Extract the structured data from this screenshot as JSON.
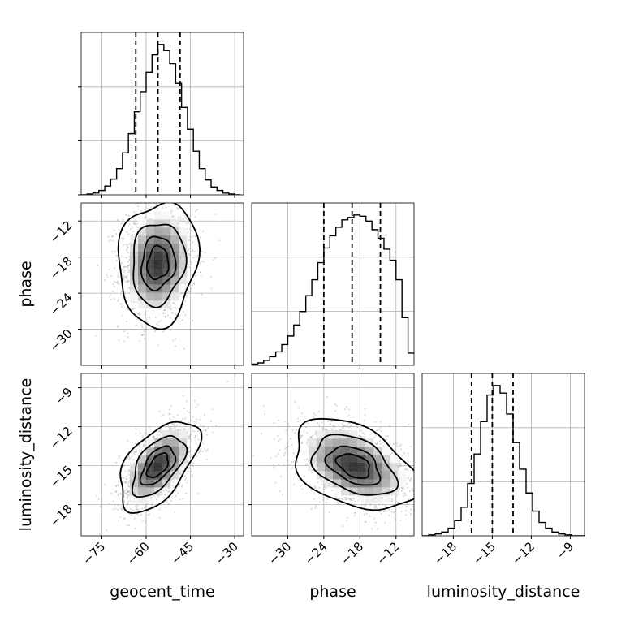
{
  "chart_data": {
    "type": "corner",
    "parameters": [
      "geocent_time",
      "phase",
      "luminosity_distance"
    ],
    "axis_labels": [
      "geocent_time",
      "phase",
      "luminosity_distance"
    ],
    "grid": true,
    "colors": {
      "line": "#000000",
      "grid": "#b0b0b0",
      "scatter": "#9a9a9a"
    },
    "ranges": {
      "geocent_time": [
        -82,
        -27
      ],
      "phase": [
        -36,
        -9
      ],
      "luminosity_distance": [
        -20.4,
        -7.9
      ]
    },
    "ticks": {
      "geocent_time": {
        "values": [
          -75,
          -60,
          -45,
          -30
        ],
        "labels": [
          "−75",
          "−60",
          "−45",
          "−30"
        ]
      },
      "phase": {
        "values": [
          -30,
          -24,
          -18,
          -12
        ],
        "labels": [
          "−30",
          "−24",
          "−18",
          "−12"
        ]
      },
      "luminosity_distance": {
        "values": [
          -18,
          -15,
          -12,
          -9
        ],
        "labels": [
          "−18",
          "−15",
          "−12",
          "−9"
        ]
      }
    },
    "marginals": [
      {
        "parameter": "geocent_time",
        "bin_edges": [
          -82,
          -80,
          -78,
          -76,
          -74,
          -72,
          -70,
          -68,
          -66,
          -64,
          -62,
          -60,
          -58,
          -56,
          -54,
          -52,
          -50,
          -48,
          -46,
          -44,
          -42,
          -40,
          -38,
          -36,
          -34,
          -32,
          -30,
          -28
        ],
        "counts": [
          0,
          1,
          2,
          5,
          10,
          18,
          30,
          48,
          70,
          95,
          118,
          140,
          160,
          172,
          165,
          150,
          128,
          100,
          75,
          50,
          30,
          17,
          9,
          5,
          2,
          1,
          0
        ],
        "quantiles": [
          -63.5,
          -56.0,
          -48.5
        ]
      },
      {
        "parameter": "phase",
        "bin_edges": [
          -36,
          -35,
          -34,
          -33,
          -32,
          -31,
          -30,
          -29,
          -28,
          -27,
          -26,
          -25,
          -24,
          -23,
          -22,
          -21,
          -20,
          -19,
          -18,
          -17,
          -16,
          -15,
          -14,
          -13,
          -12,
          -11,
          -10,
          -9
        ],
        "counts": [
          1,
          2,
          4,
          7,
          11,
          17,
          24,
          33,
          44,
          57,
          70,
          84,
          96,
          106,
          113,
          119,
          121,
          123,
          122,
          118,
          111,
          104,
          95,
          86,
          70,
          39,
          10
        ],
        "quantiles": [
          -24.0,
          -19.3,
          -14.6
        ]
      },
      {
        "parameter": "luminosity_distance",
        "bin_edges": [
          -20.4,
          -19.9,
          -19.4,
          -18.9,
          -18.4,
          -17.9,
          -17.4,
          -16.9,
          -16.4,
          -15.9,
          -15.4,
          -14.9,
          -14.4,
          -13.9,
          -13.4,
          -12.9,
          -12.4,
          -11.9,
          -11.4,
          -10.9,
          -10.4,
          -9.9,
          -9.4,
          -8.9,
          -8.4,
          -7.9
        ],
        "counts": [
          0,
          1,
          2,
          4,
          8,
          16,
          30,
          55,
          86,
          120,
          148,
          158,
          150,
          128,
          98,
          70,
          45,
          26,
          14,
          8,
          4,
          2,
          1,
          0,
          0
        ],
        "quantiles": [
          -16.6,
          -15.0,
          -13.4
        ]
      }
    ],
    "joints": [
      {
        "x": "geocent_time",
        "y": "phase",
        "center": [
          -56,
          -19
        ],
        "sigma": [
          6.5,
          5.0
        ],
        "rho": 0.1,
        "contour_levels": [
          0.12,
          0.39,
          0.68,
          0.86
        ]
      },
      {
        "x": "geocent_time",
        "y": "luminosity_distance",
        "center": [
          -56,
          -15
        ],
        "sigma": [
          6.5,
          1.7
        ],
        "rho": 0.55,
        "contour_levels": [
          0.12,
          0.39,
          0.68,
          0.86
        ]
      },
      {
        "x": "phase",
        "y": "luminosity_distance",
        "center": [
          -19,
          -15
        ],
        "sigma": [
          5.0,
          1.7
        ],
        "rho": -0.4,
        "contour_levels": [
          0.12,
          0.39,
          0.68,
          0.86
        ]
      }
    ]
  }
}
